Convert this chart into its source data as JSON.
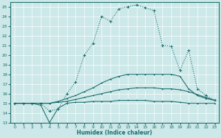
{
  "xlabel": "Humidex (Indice chaleur)",
  "bg_color": "#cce8e8",
  "line_color": "#1a6b6b",
  "xlim": [
    -0.5,
    23.5
  ],
  "ylim": [
    13,
    25.5
  ],
  "yticks": [
    13,
    14,
    15,
    16,
    17,
    18,
    19,
    20,
    21,
    22,
    23,
    24,
    25
  ],
  "xticks": [
    0,
    1,
    2,
    3,
    4,
    5,
    6,
    7,
    8,
    9,
    10,
    11,
    12,
    13,
    14,
    15,
    16,
    17,
    18,
    19,
    20,
    21,
    22,
    23
  ],
  "curve1_x": [
    0,
    1,
    2,
    3,
    4,
    5,
    6,
    7,
    8,
    9,
    10,
    11,
    12,
    13,
    14,
    15,
    16,
    17,
    18,
    19,
    20,
    21,
    22,
    23
  ],
  "curve1_y": [
    15.0,
    15.0,
    15.0,
    15.0,
    14.2,
    14.4,
    16.0,
    17.2,
    20.0,
    21.2,
    24.0,
    23.5,
    24.8,
    25.0,
    25.2,
    24.9,
    24.6,
    21.0,
    20.9,
    18.4,
    20.5,
    16.5,
    15.8,
    15.3
  ],
  "curve2_x": [
    0,
    2,
    3,
    4,
    5,
    6,
    7,
    8,
    9,
    10,
    11,
    12,
    13,
    14,
    15,
    16,
    17,
    18,
    19,
    20,
    21,
    22,
    23
  ],
  "curve2_y": [
    15.0,
    15.0,
    15.0,
    15.0,
    15.2,
    15.5,
    15.8,
    16.2,
    16.6,
    17.1,
    17.5,
    17.8,
    18.0,
    18.0,
    18.0,
    18.0,
    18.0,
    18.0,
    17.8,
    16.5,
    15.8,
    15.5,
    15.3
  ],
  "curve3_x": [
    0,
    2,
    3,
    4,
    5,
    6,
    7,
    8,
    9,
    10,
    11,
    12,
    13,
    14,
    15,
    16,
    17,
    18,
    19,
    20,
    21,
    22,
    23
  ],
  "curve3_y": [
    15.0,
    15.0,
    15.0,
    15.0,
    15.1,
    15.2,
    15.4,
    15.6,
    15.8,
    16.0,
    16.2,
    16.4,
    16.5,
    16.6,
    16.6,
    16.6,
    16.5,
    16.5,
    16.4,
    16.2,
    15.9,
    15.6,
    15.3
  ],
  "curve4_x": [
    0,
    1,
    2,
    3,
    4,
    5,
    6,
    7,
    8,
    9,
    10,
    11,
    12,
    13,
    14,
    15,
    16,
    17,
    18,
    19,
    20,
    21,
    22,
    23
  ],
  "curve4_y": [
    15.0,
    15.0,
    15.0,
    14.8,
    13.0,
    14.5,
    15.0,
    15.1,
    15.1,
    15.2,
    15.2,
    15.2,
    15.3,
    15.3,
    15.3,
    15.3,
    15.2,
    15.2,
    15.2,
    15.1,
    15.0,
    15.0,
    15.0,
    15.0
  ]
}
